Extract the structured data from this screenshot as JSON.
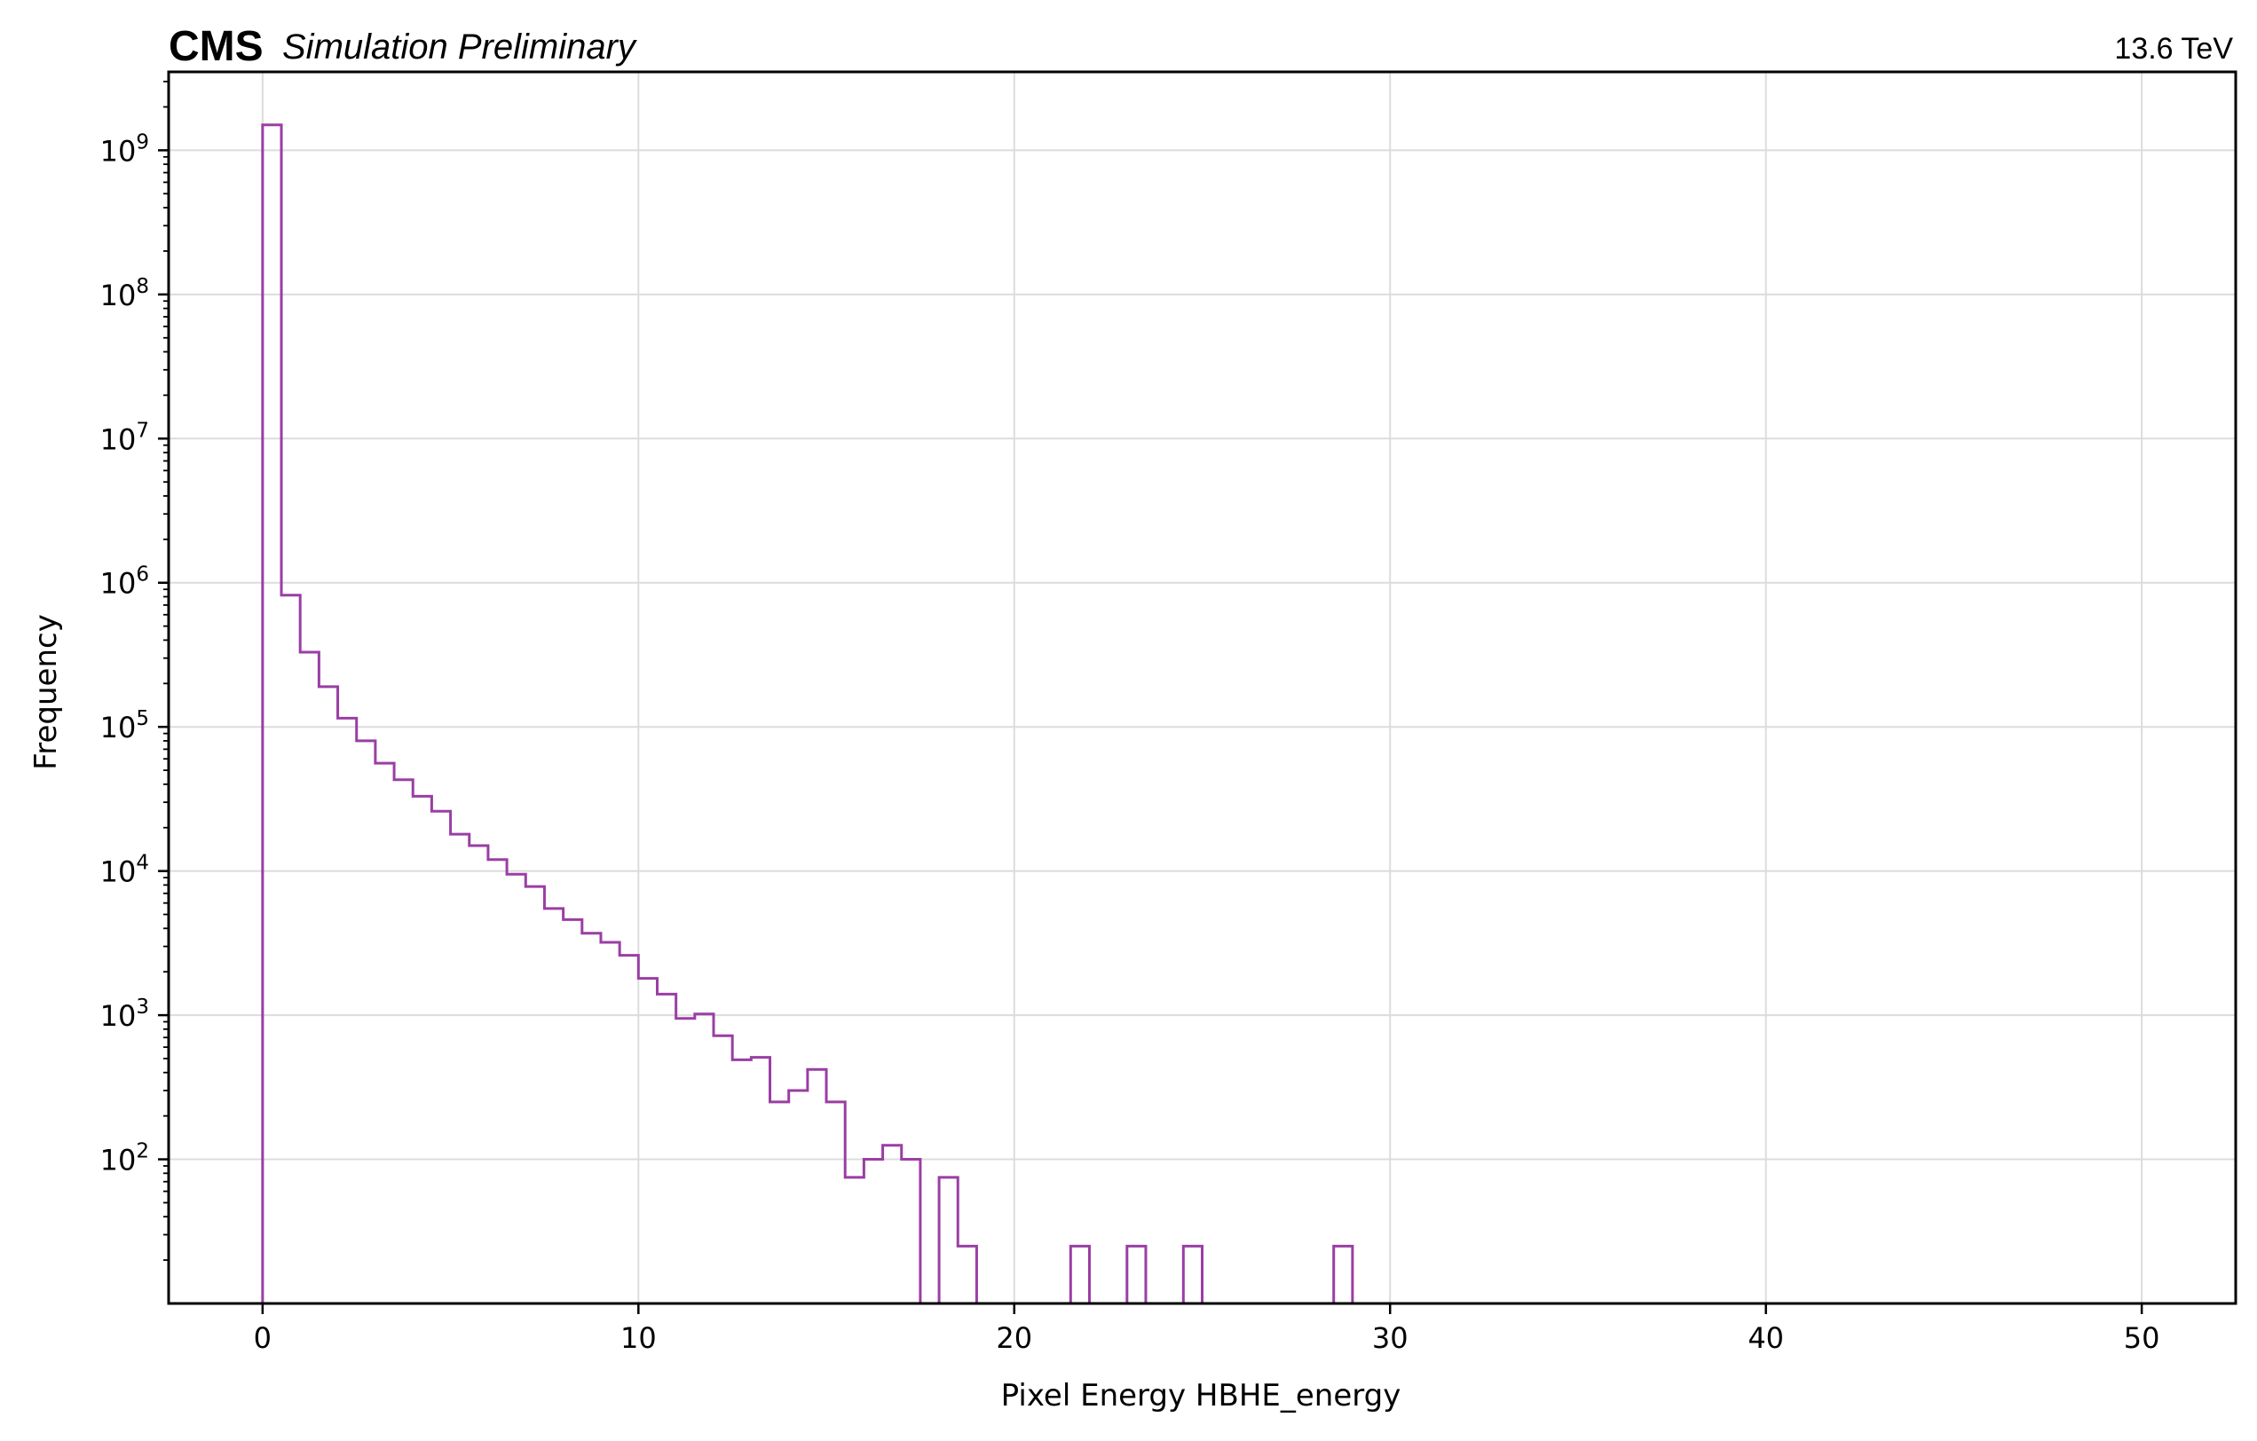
{
  "header": {
    "experiment": "CMS",
    "status": "Simulation Preliminary",
    "energy": "13.6 TeV"
  },
  "chart_data": {
    "type": "histogram",
    "xlabel": "Pixel Energy HBHE_energy",
    "ylabel": "Frequency",
    "xscale": "linear",
    "yscale": "log",
    "xlim": [
      -2.5,
      52.5
    ],
    "ylim": [
      10,
      3500000000.0
    ],
    "grid": true,
    "color": "#9a3ea4",
    "xticks": [
      0,
      10,
      20,
      30,
      40,
      50
    ],
    "yticks": [
      {
        "value": 100,
        "base": "10",
        "exp": "2"
      },
      {
        "value": 1000,
        "base": "10",
        "exp": "3"
      },
      {
        "value": 10000,
        "base": "10",
        "exp": "4"
      },
      {
        "value": 100000,
        "base": "10",
        "exp": "5"
      },
      {
        "value": 1000000,
        "base": "10",
        "exp": "6"
      },
      {
        "value": 10000000,
        "base": "10",
        "exp": "7"
      },
      {
        "value": 100000000,
        "base": "10",
        "exp": "8"
      },
      {
        "value": 1000000000,
        "base": "10",
        "exp": "9"
      }
    ],
    "bin_width": 0.5,
    "bin_start": 0,
    "counts": [
      1500000000,
      820000,
      330000,
      190000,
      115000,
      80000,
      56000,
      43000,
      33000,
      26000,
      18000,
      15000,
      12000,
      9500,
      7800,
      5500,
      4600,
      3700,
      3200,
      2600,
      1800,
      1400,
      950,
      1020,
      720,
      490,
      510,
      250,
      300,
      420,
      250,
      75,
      100,
      125,
      100,
      0,
      75,
      25,
      0,
      0,
      0,
      0,
      0,
      25,
      0,
      0,
      25,
      0,
      0,
      25,
      0,
      0,
      0,
      0,
      0,
      0,
      0,
      25
    ]
  }
}
